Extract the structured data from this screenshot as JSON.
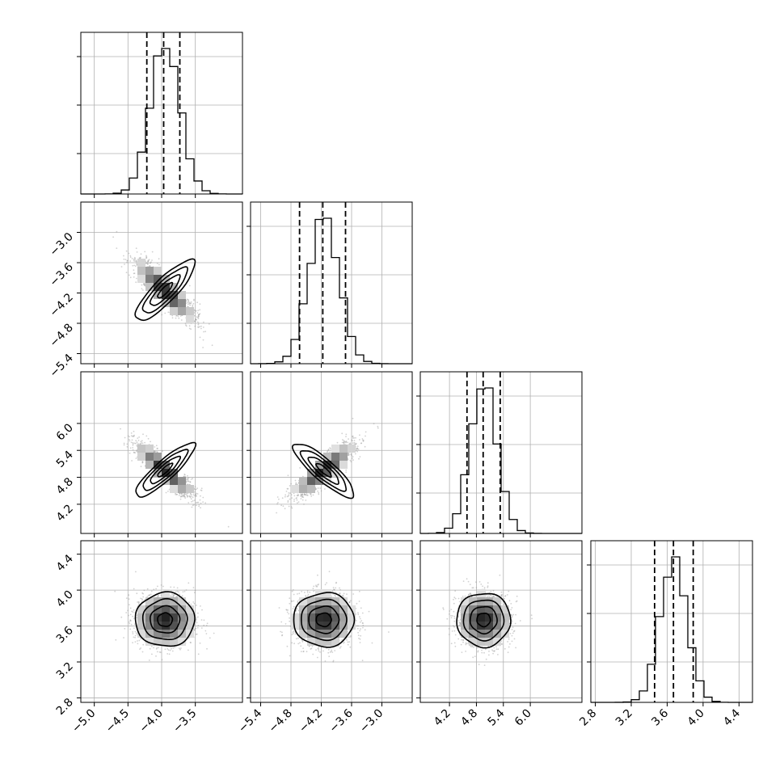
{
  "chart_data": {
    "type": "corner",
    "grid": true,
    "parameters": [
      {
        "range": [
          -5.2,
          -2.8
        ],
        "ticks": [
          -5.0,
          -4.5,
          -4.0,
          -3.5
        ],
        "tick_labels": [
          "−5.0",
          "−4.5",
          "−4.0",
          "−3.5"
        ],
        "mean": -3.95,
        "sd": 0.22,
        "quantiles": [
          -4.22,
          -3.97,
          -3.73
        ],
        "hist_ymax": 0.2
      },
      {
        "range": [
          -5.6,
          -2.4
        ],
        "ticks": [
          -5.4,
          -4.8,
          -4.2,
          -3.6,
          -3.0
        ],
        "tick_labels": [
          "−5.4",
          "−4.8",
          "−4.2",
          "−3.6",
          "−3.0"
        ],
        "mean": -4.15,
        "sd": 0.3,
        "quantiles": [
          -4.63,
          -4.17,
          -3.72
        ],
        "hist_ymax": 0.2
      },
      {
        "range": [
          3.55,
          7.15
        ],
        "ticks": [
          4.2,
          4.8,
          5.4,
          6.0
        ],
        "tick_labels": [
          "4.2",
          "4.8",
          "5.4",
          "6.0"
        ],
        "mean": 4.96,
        "sd": 0.3,
        "quantiles": [
          4.59,
          4.95,
          5.33
        ],
        "hist_ymax": 0.2
      },
      {
        "range": [
          2.75,
          4.55
        ],
        "ticks": [
          2.8,
          3.2,
          3.6,
          4.0,
          4.4
        ],
        "tick_labels": [
          "2.8",
          "3.2",
          "3.6",
          "4.0",
          "4.4"
        ],
        "mean": 3.67,
        "sd": 0.15,
        "quantiles": [
          3.46,
          3.67,
          3.89
        ],
        "hist_ymax": 0.2
      }
    ],
    "correlations": [
      [
        1.0,
        -0.85,
        -0.88,
        0.0
      ],
      [
        -0.85,
        1.0,
        0.86,
        0.0
      ],
      [
        -0.88,
        0.86,
        1.0,
        0.0
      ],
      [
        0.0,
        0.0,
        0.0,
        1.0
      ]
    ],
    "contour_levels_sigma": [
      0.5,
      1.0,
      1.5,
      2.0
    ]
  }
}
